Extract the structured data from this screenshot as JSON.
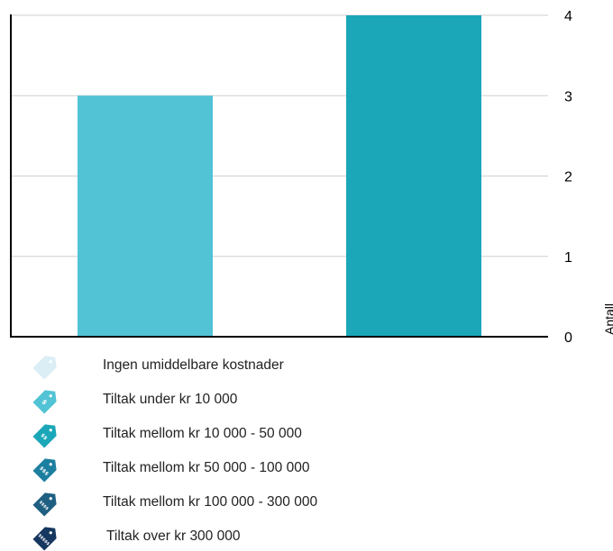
{
  "chart_data": {
    "type": "bar",
    "categories": [
      "",
      ""
    ],
    "values": [
      3,
      4
    ],
    "colors": [
      "#52c3d5",
      "#1ba7b8"
    ],
    "ylabel": "Antall",
    "ylim": [
      0,
      4
    ],
    "yticks": [
      "0",
      "1",
      "2",
      "3",
      "4"
    ],
    "grid": true,
    "y_axis_side": "right"
  },
  "legend": {
    "items": [
      {
        "label": "Ingen umiddelbare kostnader",
        "icon": "price-tag-icon",
        "symbol": "",
        "color": "#dbeef5"
      },
      {
        "label": "Tiltak under kr 10 000",
        "icon": "price-tag-icon",
        "symbol": "$",
        "color": "#52c3d5"
      },
      {
        "label": "Tiltak mellom kr 10 000 - 50 000",
        "icon": "price-tag-icon",
        "symbol": "$$",
        "color": "#1ba7b8"
      },
      {
        "label": "Tiltak mellom kr 50 000 - 100 000",
        "icon": "price-tag-icon",
        "symbol": "$$$",
        "color": "#1d7fa0"
      },
      {
        "label": "Tiltak mellom kr 100 000 - 300 000",
        "icon": "price-tag-icon",
        "symbol": "$$$$",
        "color": "#1e5f82"
      },
      {
        "label": "Tiltak over kr  300 000",
        "icon": "price-tag-icon",
        "symbol": "$$$$$",
        "color": "#16375f"
      }
    ]
  }
}
